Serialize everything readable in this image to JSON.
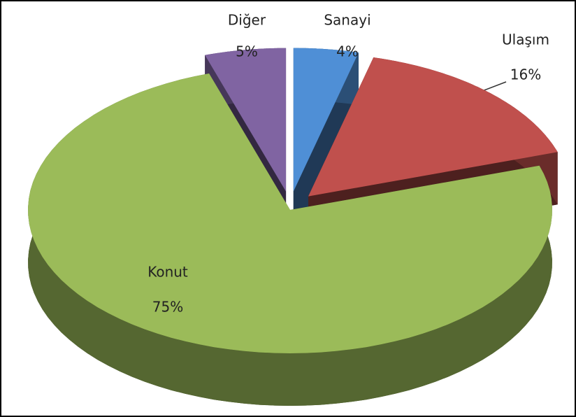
{
  "chart_data": {
    "type": "pie",
    "categories": [
      "Sanayi",
      "Ulaşım",
      "Konut",
      "Diğer"
    ],
    "values": [
      4,
      16,
      75,
      5
    ],
    "value_labels": [
      "4%",
      "16%",
      "75%",
      "5%"
    ],
    "colors": [
      "#4f8fd6",
      "#c0504d",
      "#9bbb59",
      "#8064a2"
    ]
  }
}
